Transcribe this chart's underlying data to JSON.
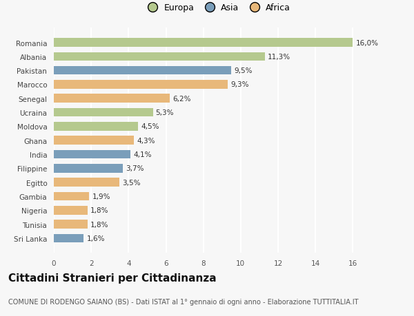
{
  "categories": [
    "Romania",
    "Albania",
    "Pakistan",
    "Marocco",
    "Senegal",
    "Ucraina",
    "Moldova",
    "Ghana",
    "India",
    "Filippine",
    "Egitto",
    "Gambia",
    "Nigeria",
    "Tunisia",
    "Sri Lanka"
  ],
  "values": [
    16.0,
    11.3,
    9.5,
    9.3,
    6.2,
    5.3,
    4.5,
    4.3,
    4.1,
    3.7,
    3.5,
    1.9,
    1.8,
    1.8,
    1.6
  ],
  "labels": [
    "16,0%",
    "11,3%",
    "9,5%",
    "9,3%",
    "6,2%",
    "5,3%",
    "4,5%",
    "4,3%",
    "4,1%",
    "3,7%",
    "3,5%",
    "1,9%",
    "1,8%",
    "1,8%",
    "1,6%"
  ],
  "continents": [
    "Europa",
    "Europa",
    "Asia",
    "Africa",
    "Africa",
    "Europa",
    "Europa",
    "Africa",
    "Asia",
    "Asia",
    "Africa",
    "Africa",
    "Africa",
    "Africa",
    "Asia"
  ],
  "colors": {
    "Europa": "#b5c98e",
    "Asia": "#7a9eba",
    "Africa": "#e8b87a"
  },
  "bg_color": "#f7f7f7",
  "grid_color": "#ffffff",
  "xlim": [
    0,
    17.5
  ],
  "xticks": [
    0,
    2,
    4,
    6,
    8,
    10,
    12,
    14,
    16
  ],
  "title": "Cittadini Stranieri per Cittadinanza",
  "subtitle": "COMUNE DI RODENGO SAIANO (BS) - Dati ISTAT al 1° gennaio di ogni anno - Elaborazione TUTTITALIA.IT",
  "title_fontsize": 11,
  "subtitle_fontsize": 7,
  "label_fontsize": 7.5,
  "tick_fontsize": 7.5,
  "legend_fontsize": 9
}
